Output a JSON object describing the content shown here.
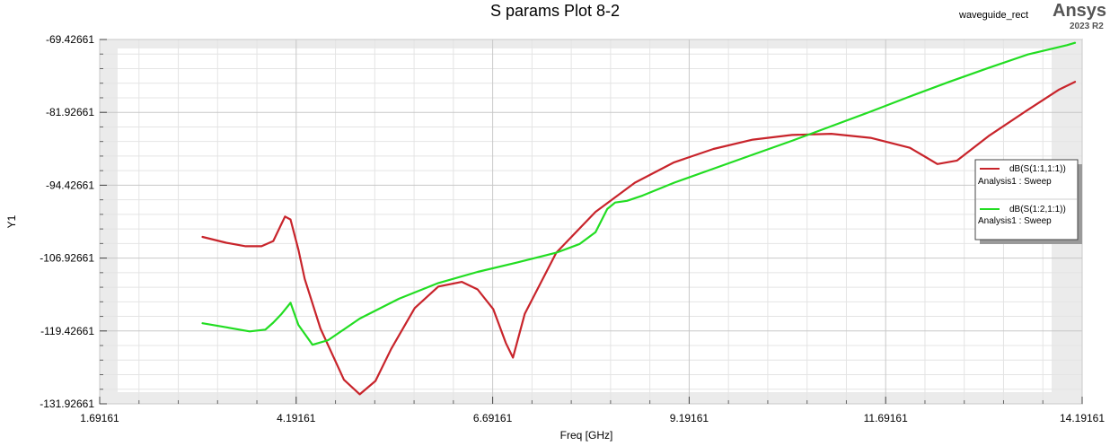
{
  "header": {
    "title": "S params Plot 8-2",
    "project": "waveguide_rect",
    "brand": "Ansys",
    "version": "2023 R2"
  },
  "chart_data": {
    "type": "line",
    "title": "S params Plot 8-2",
    "xlabel": "Freq [GHz]",
    "ylabel": "Y1",
    "xlim": [
      1.69161,
      14.19161
    ],
    "ylim": [
      -131.92661,
      -69.42661
    ],
    "xticks": [
      "1.69161",
      "4.19161",
      "6.69161",
      "9.19161",
      "11.69161",
      "14.19161"
    ],
    "yticks": [
      "-69.42661",
      "-81.92661",
      "-94.42661",
      "-106.92661",
      "-119.42661",
      "-131.92661"
    ],
    "grid": true,
    "legend_position": "right",
    "series": [
      {
        "name": "dB(S(1:1,1:1))",
        "sub": "Analysis1 : Sweep",
        "color": "#c8242b",
        "x": [
          3.0,
          3.3,
          3.55,
          3.75,
          3.9,
          4.0,
          4.05,
          4.12,
          4.22,
          4.3,
          4.5,
          4.8,
          5.0,
          5.2,
          5.4,
          5.7,
          6.0,
          6.3,
          6.5,
          6.7,
          6.86,
          6.95,
          7.1,
          7.5,
          8.0,
          8.5,
          9.0,
          9.5,
          10.0,
          10.5,
          11.0,
          11.5,
          12.0,
          12.2,
          12.35,
          12.6,
          13.0,
          13.5,
          13.9,
          14.1
        ],
        "y": [
          -103.3,
          -104.3,
          -104.9,
          -104.9,
          -104.0,
          -101.2,
          -99.8,
          -100.3,
          -105.5,
          -110.5,
          -119.0,
          -127.8,
          -130.3,
          -128.0,
          -122.5,
          -115.5,
          -111.8,
          -111.0,
          -112.3,
          -115.7,
          -121.5,
          -124.0,
          -116.5,
          -106.0,
          -99.0,
          -94.0,
          -90.5,
          -88.2,
          -86.6,
          -85.8,
          -85.6,
          -86.3,
          -88.0,
          -89.6,
          -90.8,
          -90.2,
          -86.0,
          -81.5,
          -78.0,
          -76.7
        ]
      },
      {
        "name": "dB(S(1:2,1:1))",
        "sub": "Analysis1 : Sweep",
        "color": "#22dd22",
        "x": [
          3.0,
          3.3,
          3.6,
          3.8,
          3.9,
          4.0,
          4.12,
          4.22,
          4.4,
          4.6,
          5.0,
          5.5,
          6.0,
          6.5,
          7.0,
          7.5,
          7.8,
          8.0,
          8.15,
          8.25,
          8.4,
          8.6,
          9.0,
          9.5,
          10.0,
          10.5,
          11.0,
          11.5,
          12.0,
          12.5,
          13.0,
          13.5,
          14.0,
          14.1
        ],
        "y": [
          -118.1,
          -118.8,
          -119.5,
          -119.2,
          -118.0,
          -116.6,
          -114.6,
          -118.4,
          -121.8,
          -121.0,
          -117.3,
          -113.9,
          -111.2,
          -109.3,
          -107.7,
          -106.0,
          -104.5,
          -102.5,
          -98.5,
          -97.4,
          -97.1,
          -96.2,
          -94.0,
          -91.6,
          -89.2,
          -86.8,
          -84.3,
          -81.8,
          -79.2,
          -76.7,
          -74.3,
          -72.0,
          -70.4,
          -70.0
        ]
      }
    ]
  }
}
